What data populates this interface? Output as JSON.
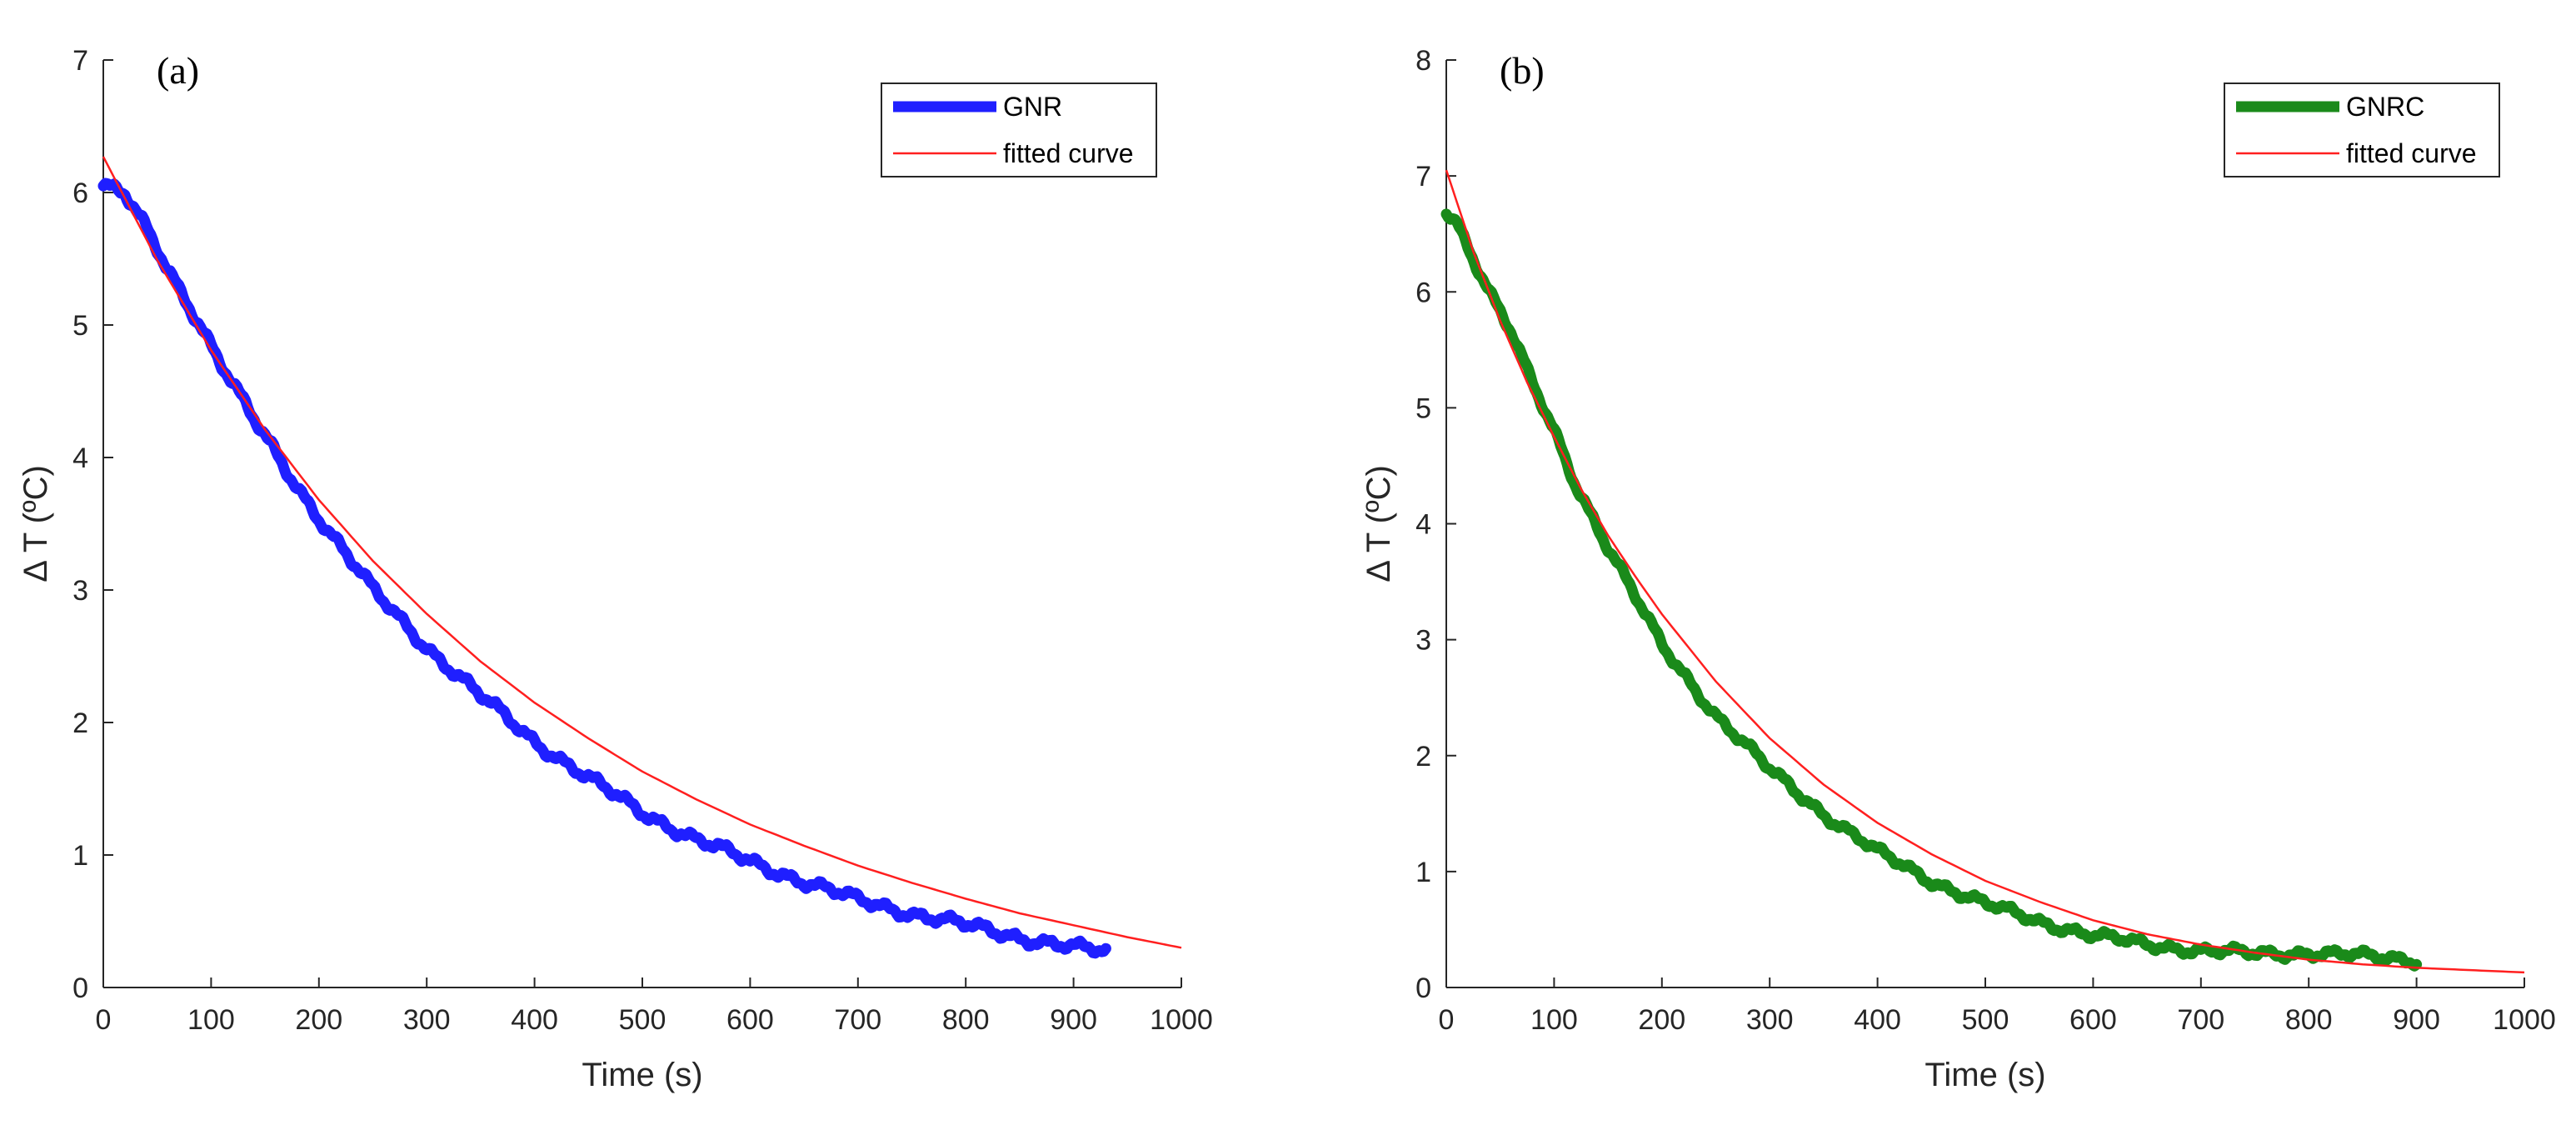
{
  "chart_data": [
    {
      "type": "line",
      "panel_label": "(a)",
      "xlabel": "Time (s)",
      "ylabel": "Δ T (ºC)",
      "xlim": [
        0,
        1000
      ],
      "ylim": [
        0,
        7
      ],
      "xticks": [
        0,
        100,
        200,
        300,
        400,
        500,
        600,
        700,
        800,
        900,
        1000
      ],
      "yticks": [
        0,
        1,
        2,
        3,
        4,
        5,
        6,
        7
      ],
      "legend_position": "top-right",
      "series": [
        {
          "name": "GNR",
          "style": "thick-measured",
          "color": "#1f1fff",
          "x": [
            0,
            10,
            20,
            40,
            60,
            80,
            100,
            120,
            140,
            160,
            180,
            200,
            250,
            300,
            350,
            400,
            450,
            500,
            550,
            600,
            650,
            700,
            750,
            800,
            850,
            900,
            930
          ],
          "y": [
            6.05,
            6.02,
            5.98,
            5.72,
            5.42,
            5.15,
            4.85,
            4.55,
            4.28,
            4.03,
            3.78,
            3.55,
            3.0,
            2.57,
            2.2,
            1.86,
            1.58,
            1.32,
            1.12,
            0.95,
            0.8,
            0.66,
            0.56,
            0.47,
            0.38,
            0.3,
            0.27
          ]
        },
        {
          "name": "fitted curve",
          "style": "thin-fit",
          "color": "#ff1f1f",
          "x": [
            0,
            50,
            100,
            150,
            200,
            250,
            300,
            350,
            400,
            450,
            500,
            550,
            600,
            650,
            700,
            750,
            800,
            850,
            900,
            950,
            1000
          ],
          "y": [
            6.27,
            5.49,
            4.81,
            4.21,
            3.68,
            3.22,
            2.82,
            2.46,
            2.15,
            1.88,
            1.63,
            1.42,
            1.23,
            1.07,
            0.92,
            0.79,
            0.67,
            0.56,
            0.47,
            0.38,
            0.3
          ]
        }
      ]
    },
    {
      "type": "line",
      "panel_label": "(b)",
      "xlabel": "Time (s)",
      "ylabel": "Δ T (ºC)",
      "xlim": [
        0,
        1000
      ],
      "ylim": [
        0,
        8
      ],
      "xticks": [
        0,
        100,
        200,
        300,
        400,
        500,
        600,
        700,
        800,
        900,
        1000
      ],
      "yticks": [
        0,
        1,
        2,
        3,
        4,
        5,
        6,
        7,
        8
      ],
      "legend_position": "top-right",
      "series": [
        {
          "name": "GNRC",
          "style": "thick-measured",
          "color": "#1a8a1a",
          "x": [
            0,
            10,
            20,
            40,
            60,
            80,
            100,
            120,
            150,
            200,
            250,
            300,
            350,
            400,
            450,
            500,
            550,
            600,
            650,
            700,
            750,
            800,
            850,
            900
          ],
          "y": [
            6.7,
            6.6,
            6.4,
            6.0,
            5.65,
            5.2,
            4.8,
            4.35,
            3.8,
            2.95,
            2.35,
            1.88,
            1.5,
            1.17,
            0.92,
            0.72,
            0.57,
            0.45,
            0.37,
            0.32,
            0.29,
            0.3,
            0.27,
            0.24
          ]
        },
        {
          "name": "fitted curve",
          "style": "thin-fit",
          "color": "#ff1f1f",
          "x": [
            0,
            25,
            50,
            75,
            100,
            125,
            150,
            175,
            200,
            250,
            300,
            350,
            400,
            450,
            500,
            550,
            600,
            650,
            700,
            750,
            800,
            850,
            900,
            950,
            1000
          ],
          "y": [
            7.05,
            6.35,
            5.75,
            5.22,
            4.75,
            4.3,
            3.9,
            3.55,
            3.22,
            2.64,
            2.15,
            1.75,
            1.42,
            1.15,
            0.92,
            0.74,
            0.58,
            0.46,
            0.37,
            0.3,
            0.24,
            0.2,
            0.17,
            0.15,
            0.13
          ]
        }
      ]
    }
  ]
}
